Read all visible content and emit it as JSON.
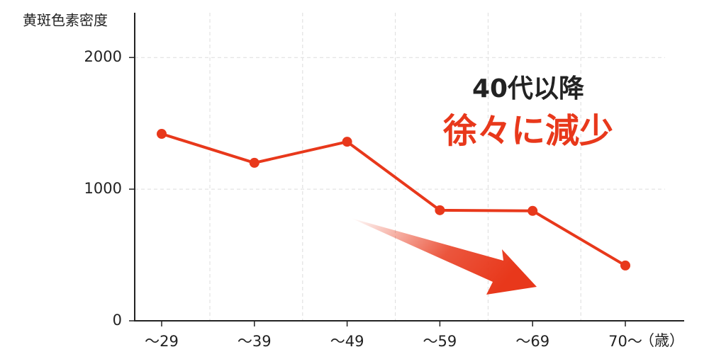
{
  "chart_data": {
    "type": "line",
    "y_label": "黄斑色素密度",
    "x_label": "（歳）",
    "annotations": [
      "40代以降",
      "徐々に減少"
    ],
    "categories": [
      "～29",
      "～39",
      "～49",
      "～59",
      "～69",
      "70～"
    ],
    "series": [
      {
        "name": "黄斑色素密度",
        "color": "#e8381b",
        "values": [
          1420,
          1200,
          1360,
          840,
          835,
          420
        ]
      }
    ],
    "ylim": [
      0,
      2340
    ],
    "yticks": [
      0,
      1000,
      2000
    ],
    "grid": true
  }
}
